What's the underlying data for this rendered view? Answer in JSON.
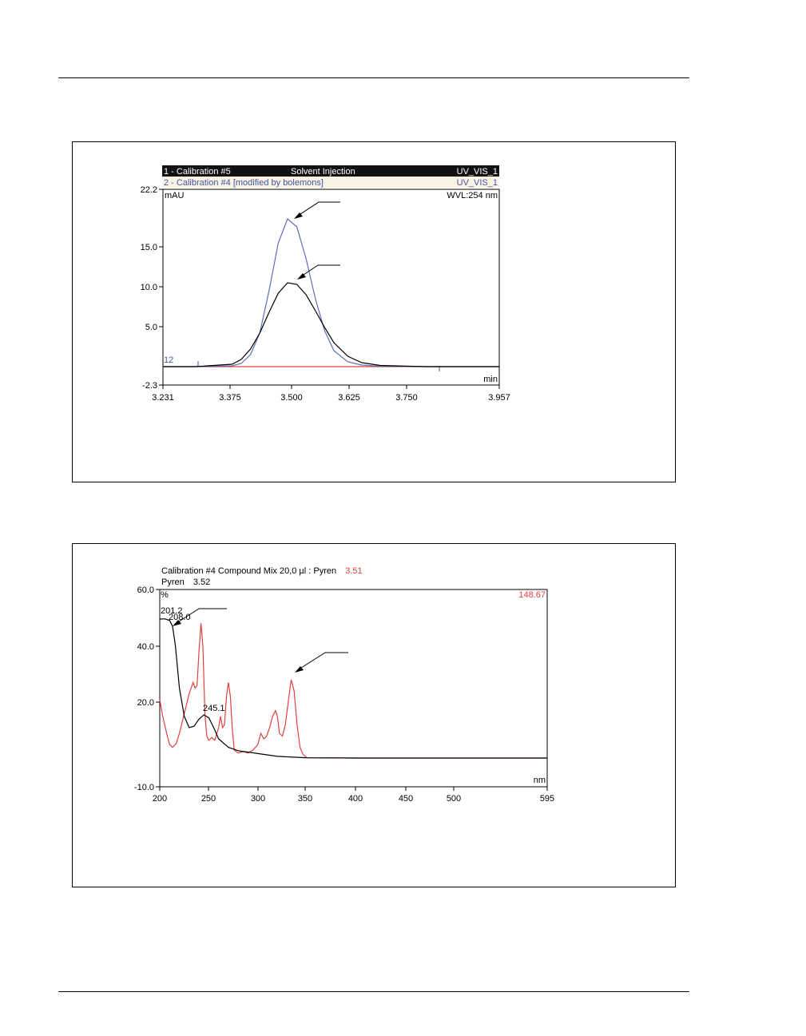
{
  "chart_data": [
    {
      "type": "line",
      "header_rows": [
        {
          "id": "1 - Calibration #5",
          "sample": "Solvent Injection",
          "channel": "UV_VIS_1"
        },
        {
          "id": "2 - Calibration #4 [modified by bolemons]",
          "sample": "",
          "channel": "UV_VIS_1"
        }
      ],
      "ylabel": "mAU",
      "xlabel": "min",
      "annotation": "WVL:254 nm",
      "trace_marker": "12",
      "xlim": [
        3.231,
        3.957
      ],
      "ylim": [
        -2.3,
        22.2
      ],
      "xticks": [
        "3.231",
        "3.375",
        "3.500",
        "3.625",
        "3.750",
        "3.957"
      ],
      "yticks": [
        "22.2",
        "15.0",
        "10.0",
        "5.0",
        "-2.3"
      ],
      "series": [
        {
          "color": "#5a6fb8",
          "x": [
            3.231,
            3.3,
            3.38,
            3.4,
            3.42,
            3.44,
            3.46,
            3.48,
            3.5,
            3.52,
            3.54,
            3.56,
            3.58,
            3.6,
            3.63,
            3.66,
            3.7,
            3.8,
            3.957
          ],
          "y": [
            0.0,
            0.0,
            0.1,
            0.4,
            1.5,
            4.2,
            9.5,
            15.5,
            18.5,
            17.5,
            13.5,
            8.5,
            4.5,
            2.0,
            0.6,
            0.2,
            0.05,
            0.0,
            0.0
          ]
        },
        {
          "color": "#000000",
          "x": [
            3.231,
            3.3,
            3.38,
            3.4,
            3.42,
            3.44,
            3.46,
            3.48,
            3.5,
            3.52,
            3.54,
            3.56,
            3.58,
            3.6,
            3.63,
            3.66,
            3.7,
            3.8,
            3.957
          ],
          "y": [
            0.0,
            0.0,
            0.3,
            0.9,
            2.2,
            4.2,
            6.8,
            9.2,
            10.5,
            10.3,
            9.0,
            7.0,
            4.9,
            3.0,
            1.3,
            0.5,
            0.15,
            0.0,
            0.0
          ]
        },
        {
          "color": "#e04040",
          "x": [
            3.231,
            3.957
          ],
          "y": [
            0.0,
            0.0
          ]
        }
      ]
    },
    {
      "type": "line",
      "title_line1": "Calibration #4 Compound Mix 20,0 µl : Pyren",
      "title_line1_value": "3.51",
      "title_line2": "Pyren",
      "title_line2_value": "3.52",
      "ylabel": "%",
      "xlabel": "nm",
      "annotation": "148.67",
      "xlim": [
        200,
        595
      ],
      "ylim": [
        -10.0,
        60.0
      ],
      "xticks": [
        "200",
        "250",
        "300",
        "350",
        "400",
        "450",
        "500",
        "595"
      ],
      "yticks": [
        "60.0",
        "40.0",
        "20.0",
        "-10.0"
      ],
      "peak_labels": [
        {
          "text": "201.2",
          "x": 201.2,
          "y": 49.6
        },
        {
          "text": "208.0",
          "x": 208.0,
          "y": 46.8
        },
        {
          "text": "245.1",
          "x": 245.1,
          "y": 15.5
        }
      ],
      "series": [
        {
          "color": "#000000",
          "x": [
            200,
            205,
            210,
            213,
            216,
            220,
            225,
            230,
            235,
            240,
            245,
            250,
            255,
            260,
            270,
            280,
            300,
            320,
            350,
            400,
            595
          ],
          "y": [
            49.5,
            49.6,
            49.0,
            47.0,
            40.0,
            25.0,
            15.0,
            11.0,
            11.5,
            14.0,
            15.5,
            14.5,
            11.0,
            7.0,
            4.0,
            2.8,
            1.8,
            0.8,
            0.3,
            0.2,
            0.2
          ]
        },
        {
          "color": "#e04040",
          "x": [
            200,
            203,
            207,
            210,
            213,
            217,
            220,
            225,
            230,
            234,
            236,
            238,
            240,
            242,
            244,
            246,
            248,
            250,
            253,
            256,
            260,
            262,
            264,
            266,
            268,
            270,
            272,
            274,
            276,
            280,
            285,
            290,
            295,
            300,
            303,
            306,
            309,
            312,
            315,
            318,
            320,
            322,
            325,
            328,
            331,
            334,
            337,
            340,
            343,
            346,
            350,
            400,
            595
          ],
          "y": [
            21.0,
            15.0,
            9.0,
            5.0,
            4.0,
            5.5,
            9.0,
            16.0,
            23.0,
            27.0,
            25.0,
            26.0,
            38.0,
            48.0,
            40.0,
            16.0,
            8.0,
            6.5,
            7.5,
            6.5,
            11.0,
            15.0,
            11.0,
            12.0,
            22.0,
            27.0,
            22.0,
            10.0,
            3.0,
            2.0,
            2.5,
            2.0,
            3.0,
            5.0,
            9.0,
            7.0,
            8.0,
            11.0,
            15.0,
            17.0,
            15.0,
            9.0,
            8.0,
            12.0,
            20.0,
            28.0,
            24.0,
            12.0,
            4.0,
            1.5,
            0.3,
            0.2,
            0.2
          ]
        }
      ]
    }
  ]
}
